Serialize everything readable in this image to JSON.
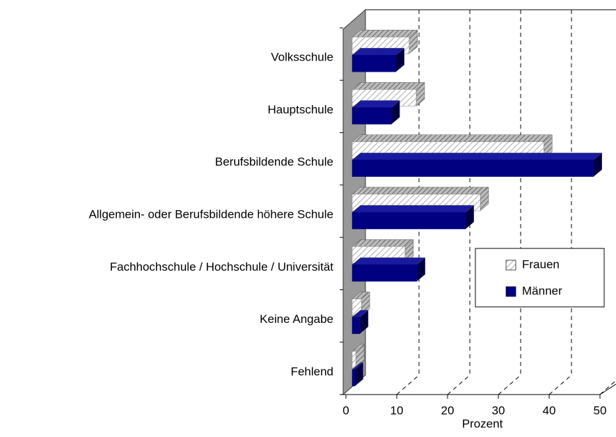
{
  "chart_data": {
    "type": "bar",
    "orientation": "horizontal",
    "categories": [
      "Volksschule",
      "Hauptschule",
      "Berufsbildende Schule",
      "Allgemein- oder Berufsbildende höhere Schule",
      "Fachhochschule / Hochschule / Universität",
      "Keine Angabe",
      "Fehlend"
    ],
    "series": [
      {
        "name": "Frauen",
        "color": "#ffffff",
        "hatch": true,
        "values": [
          11.2,
          12.6,
          37.7,
          25.2,
          10.4,
          1.8,
          0.7
        ]
      },
      {
        "name": "Männer",
        "color": "#000080",
        "hatch": false,
        "values": [
          8.6,
          7.7,
          47.5,
          22.3,
          12.7,
          1.5,
          0.5
        ]
      }
    ],
    "xlabel": "Prozent",
    "xlim": [
      0,
      50
    ],
    "xticks": [
      0,
      10,
      20,
      30,
      40,
      50
    ],
    "grid": true,
    "legend": "right"
  }
}
